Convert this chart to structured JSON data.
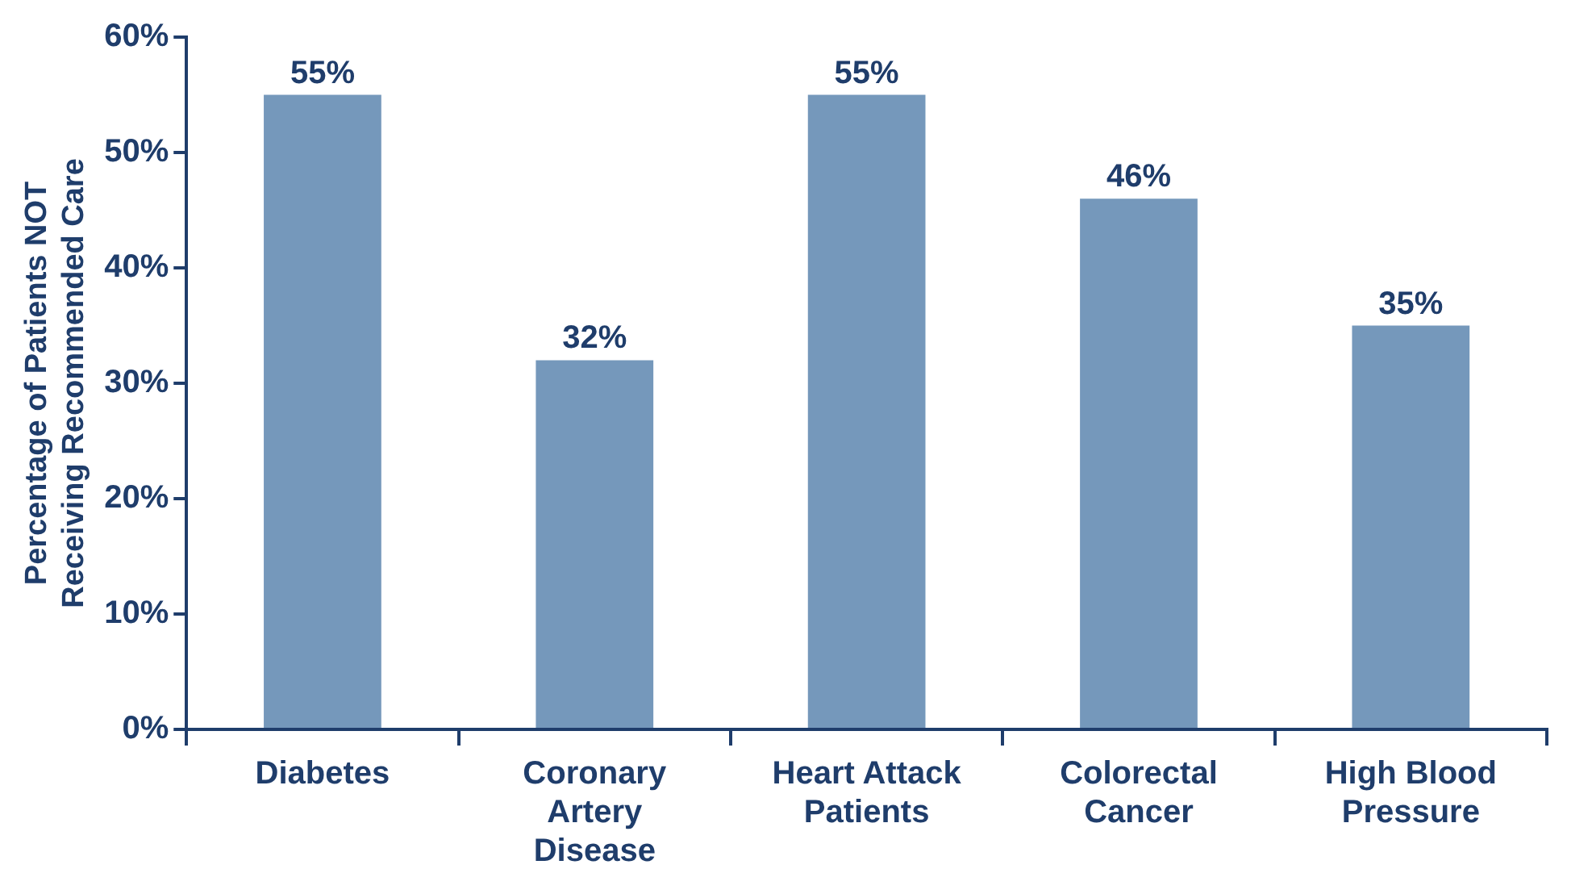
{
  "chart_data": {
    "type": "bar",
    "ylabel": "Percentage of Patients NOT Receiving Recommended Care",
    "categories": [
      "Diabetes",
      "Coronary Artery Disease",
      "Heart Attack Patients",
      "Colorectal Cancer",
      "High Blood Pressure"
    ],
    "values": [
      55,
      32,
      55,
      46,
      35
    ],
    "value_labels": [
      "55%",
      "32%",
      "55%",
      "46%",
      "35%"
    ],
    "color": "#7598bb",
    "ylim": [
      0,
      60
    ],
    "yticks": [
      {
        "value": 0,
        "label": "0%"
      },
      {
        "value": 10,
        "label": "10%"
      },
      {
        "value": 20,
        "label": "20%"
      },
      {
        "value": 30,
        "label": "30%"
      },
      {
        "value": 40,
        "label": "40%"
      },
      {
        "value": 50,
        "label": "50%"
      },
      {
        "value": 60,
        "label": "60%"
      }
    ],
    "grid": false,
    "legend": false
  }
}
